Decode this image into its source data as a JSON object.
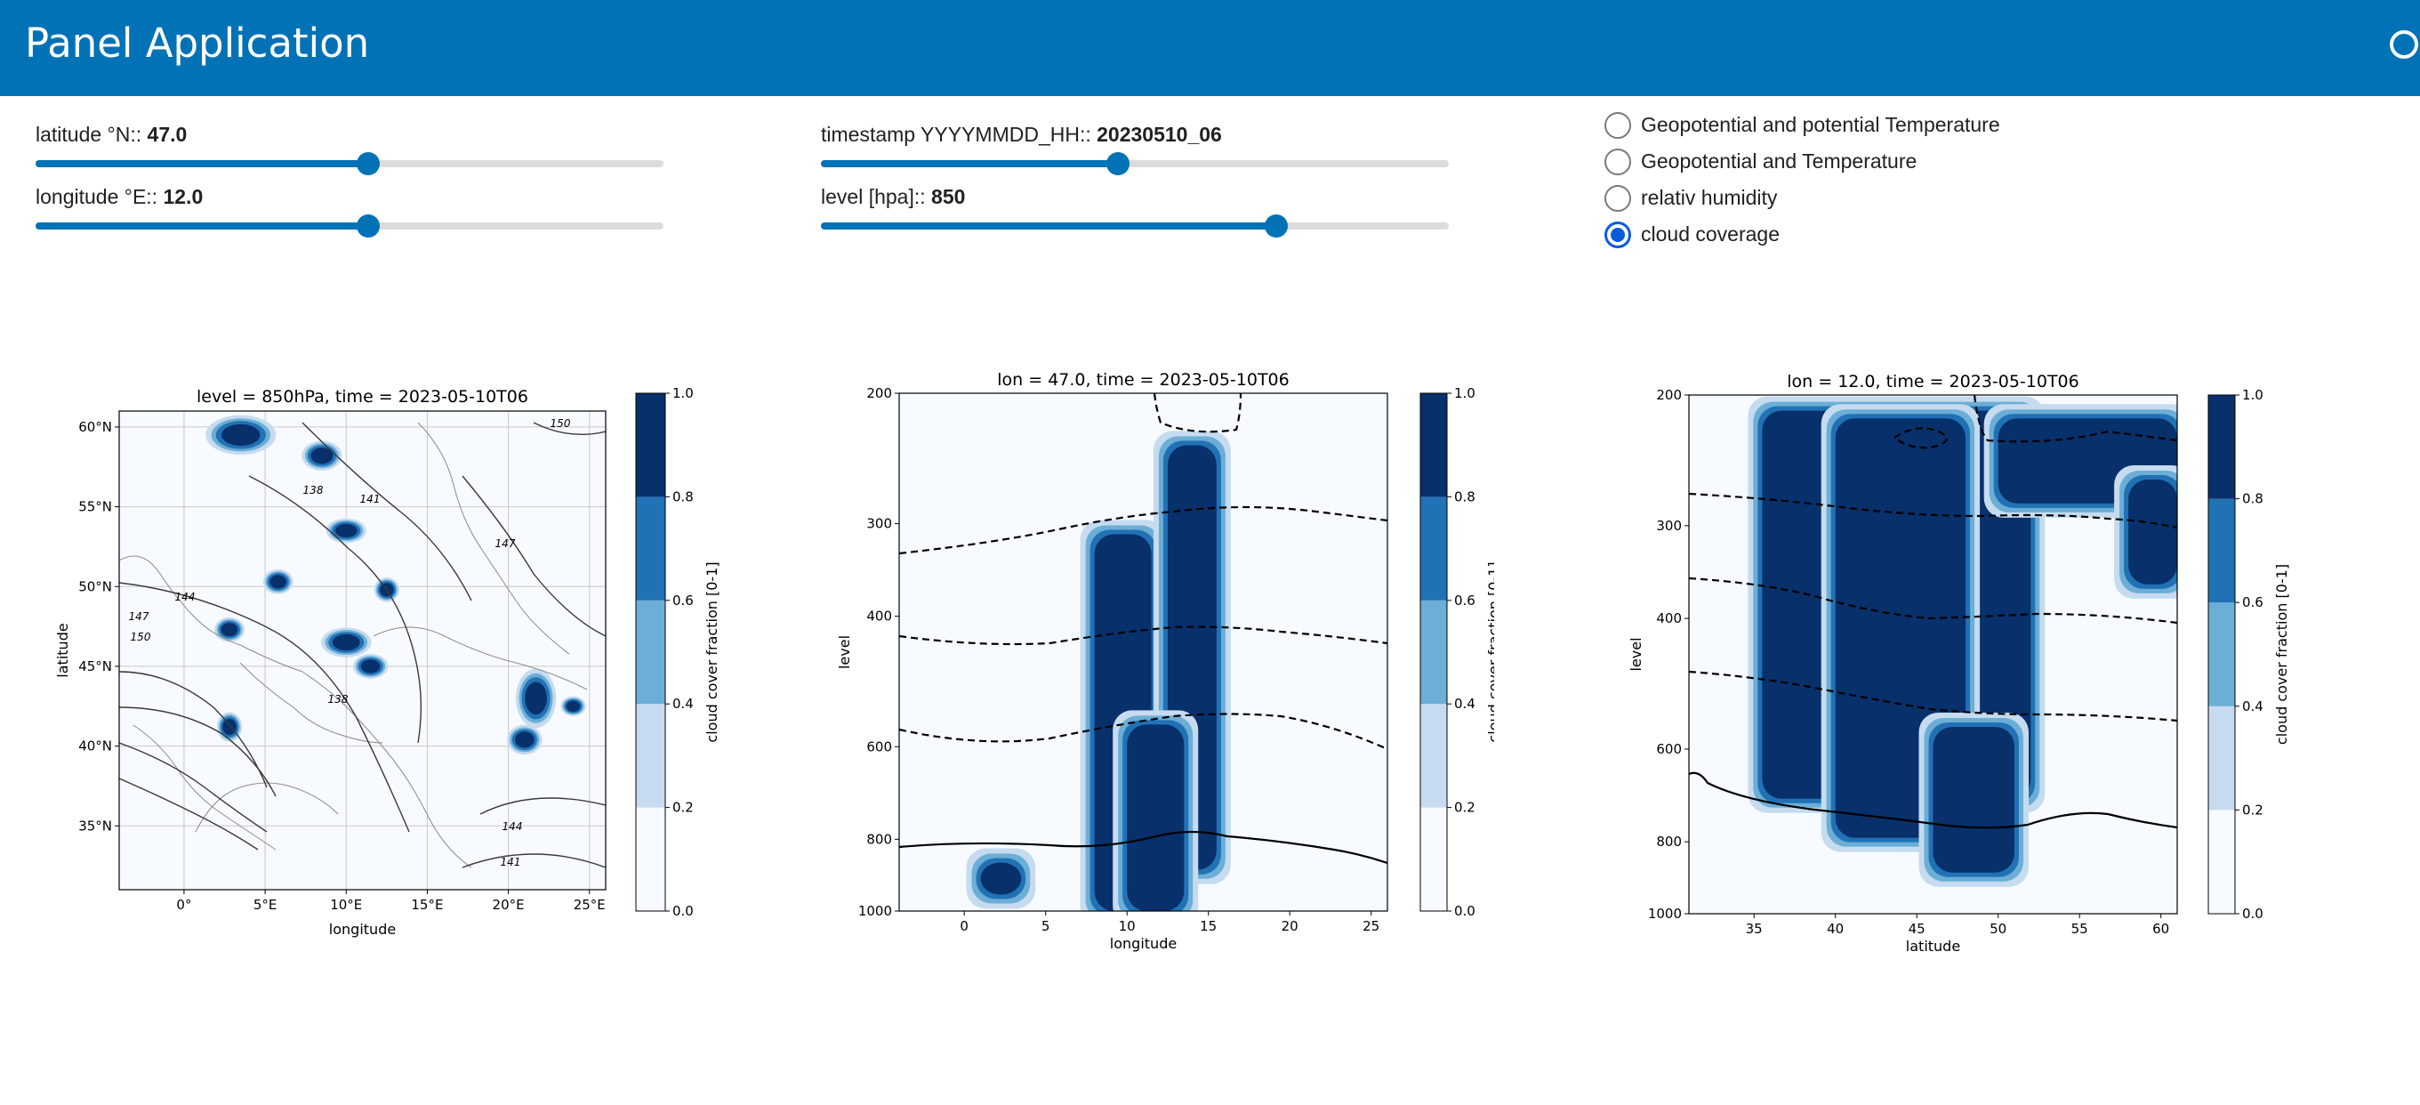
{
  "header": {
    "title": "Panel Application"
  },
  "controls": {
    "latitude": {
      "label": "latitude °N:: ",
      "value": "47.0",
      "fraction": 0.53
    },
    "longitude": {
      "label": "longitude °E:: ",
      "value": "12.0",
      "fraction": 0.53
    },
    "timestamp": {
      "label": "timestamp YYYYMMDD_HH:: ",
      "value": "20230510_06",
      "fraction": 0.473
    },
    "level": {
      "label": "level [hpa]:: ",
      "value": "850",
      "fraction": 0.725
    }
  },
  "variables": [
    {
      "label": "Geopotential and potential Temperature",
      "selected": false
    },
    {
      "label": "Geopotential and Temperature",
      "selected": false
    },
    {
      "label": "relativ humidity",
      "selected": false
    },
    {
      "label": "cloud coverage",
      "selected": true
    }
  ],
  "colorbar": {
    "label": "cloud cover fraction [0-1]",
    "ticks": [
      "0.0",
      "0.2",
      "0.4",
      "0.6",
      "0.8",
      "1.0"
    ],
    "colors": [
      "#f7fbff",
      "#c6dbef",
      "#6baed6",
      "#2171b5",
      "#08306b"
    ]
  },
  "chart_data": [
    {
      "type": "heatmap",
      "title": "level = 850hPa, time = 2023-05-10T06",
      "xlabel": "longitude",
      "ylabel": "latitude",
      "xlim": [
        -4,
        26
      ],
      "ylim": [
        31,
        61
      ],
      "x_ticks": [
        0,
        5,
        10,
        15,
        20,
        25
      ],
      "x_tick_labels": [
        "0°",
        "5°E",
        "10°E",
        "15°E",
        "20°E",
        "25°E"
      ],
      "y_ticks": [
        35,
        40,
        45,
        50,
        55,
        60
      ],
      "y_tick_labels": [
        "35°N",
        "40°N",
        "45°N",
        "50°N",
        "55°N",
        "60°N"
      ],
      "contour_labels": [
        "150",
        "138",
        "141",
        "147",
        "144",
        "147",
        "150",
        "138",
        "144",
        "141"
      ],
      "cloud_blobs": [
        [
          3.5,
          59.5,
          1.4,
          0.8
        ],
        [
          8.5,
          58.2,
          0.8,
          0.6
        ],
        [
          10,
          53.5,
          0.8,
          0.5
        ],
        [
          5.8,
          50.3,
          0.6,
          0.5
        ],
        [
          12.5,
          49.8,
          0.5,
          0.5
        ],
        [
          2.8,
          47.3,
          0.6,
          0.5
        ],
        [
          10,
          46.5,
          1,
          0.6
        ],
        [
          11.5,
          45,
          0.7,
          0.5
        ],
        [
          2.8,
          41.2,
          0.5,
          0.6
        ],
        [
          21.7,
          43,
          0.8,
          1.2
        ],
        [
          21,
          40.4,
          0.7,
          0.6
        ],
        [
          24,
          42.5,
          0.5,
          0.4
        ]
      ]
    },
    {
      "type": "heatmap",
      "title": "lon = 47.0, time = 2023-05-10T06",
      "xlabel": "longitude",
      "ylabel": "level",
      "xlim": [
        -4,
        26
      ],
      "ylim": [
        1000,
        200
      ],
      "x_ticks": [
        0,
        5,
        10,
        15,
        20,
        25
      ],
      "y_ticks": [
        200,
        300,
        400,
        600,
        800,
        1000
      ],
      "dashed_contours_level": [
        330,
        430,
        580
      ],
      "solid_contour_level": 820,
      "cloud_columns": [
        {
          "x": [
            8,
            11.5
          ],
          "top": 310,
          "bottom": 1000
        },
        {
          "x": [
            12.5,
            15.5
          ],
          "top": 235,
          "bottom": 880
        },
        {
          "x": [
            10,
            13.5
          ],
          "top": 560,
          "bottom": 1000
        },
        {
          "x": [
            1,
            3.5
          ],
          "top": 860,
          "bottom": 950
        }
      ]
    },
    {
      "type": "heatmap",
      "title": "lon = 12.0, time = 2023-05-10T06",
      "xlabel": "latitude",
      "ylabel": "level",
      "xlim": [
        31,
        61
      ],
      "ylim": [
        1000,
        200
      ],
      "x_ticks": [
        35,
        40,
        45,
        50,
        55,
        60
      ],
      "y_ticks": [
        200,
        300,
        400,
        600,
        800,
        1000
      ],
      "dashed_contours_level": [
        240,
        270,
        340,
        490
      ],
      "solid_contour_level": 690,
      "cloud_columns": [
        {
          "x": [
            35.5,
            52
          ],
          "top": 210,
          "bottom": 700
        },
        {
          "x": [
            40,
            48
          ],
          "top": 215,
          "bottom": 790
        },
        {
          "x": [
            46,
            51
          ],
          "top": 560,
          "bottom": 880
        },
        {
          "x": [
            50,
            61
          ],
          "top": 215,
          "bottom": 280
        },
        {
          "x": [
            58,
            61
          ],
          "top": 260,
          "bottom": 360
        }
      ]
    }
  ]
}
